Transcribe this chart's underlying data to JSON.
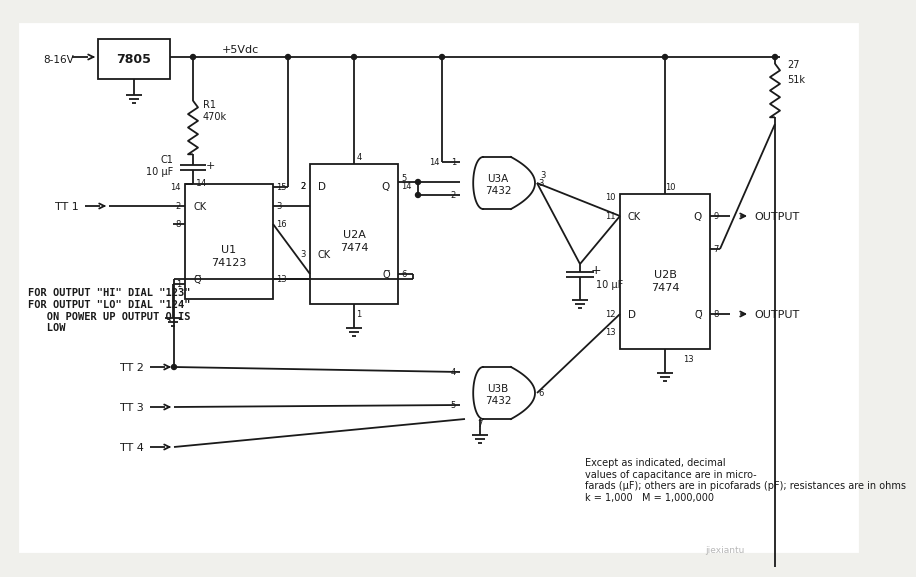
{
  "bg_color": "#f0f0ec",
  "line_color": "#1a1a1a",
  "text_color": "#1a1a1a",
  "note_text": "Except as indicated, decimal\nvalues of capacitance are in micro-\nfarads (μF); others are in picofarads (pF); resistances are in ohms\nk = 1,000   M = 1,000,000",
  "instructions": "FOR OUTPUT \"HI\" DIAL \"123\"\nFOR OUTPUT \"LO\" DIAL \"124\"\n   ON POWER UP OUTPUT Q IS\n   LOW",
  "watermark": "jiexiantu"
}
